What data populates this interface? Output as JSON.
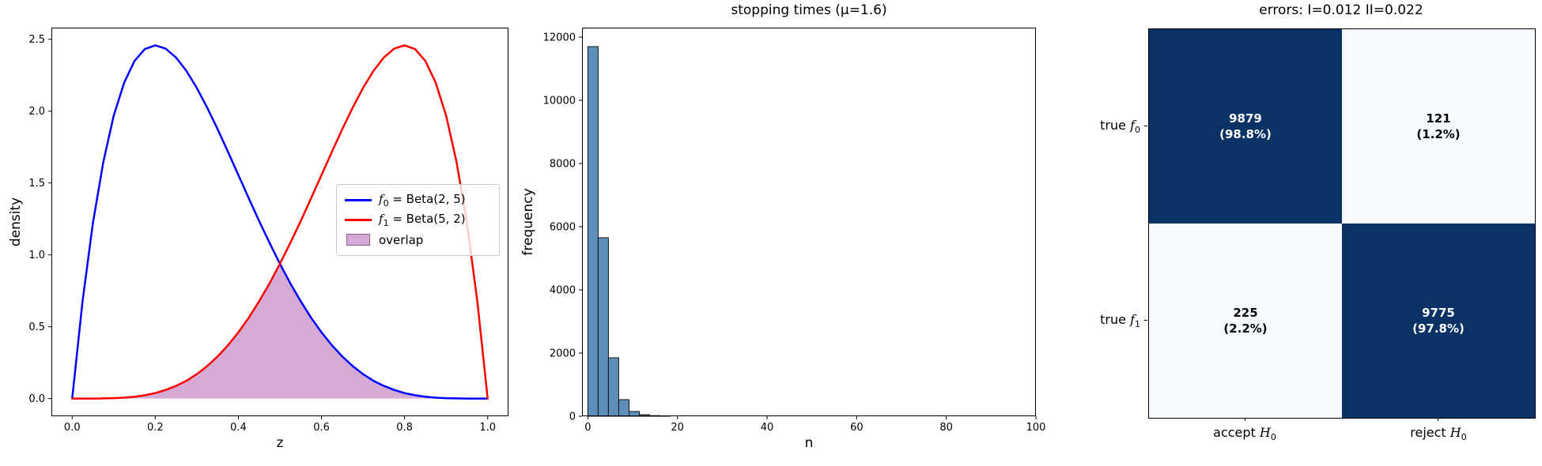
{
  "figure": {
    "background": "#ffffff"
  },
  "chart_data": [
    {
      "type": "line",
      "xlabel": "z",
      "ylabel": "density",
      "xlim": [
        -0.05,
        1.05
      ],
      "ylim": [
        -0.123,
        2.581
      ],
      "xticks": [
        0,
        0.2,
        0.4,
        0.6,
        0.8,
        1.0
      ],
      "xtick_labels": [
        "0.0",
        "0.2",
        "0.4",
        "0.6",
        "0.8",
        "1.0"
      ],
      "yticks": [
        0,
        0.5,
        1.0,
        1.5,
        2.0,
        2.5
      ],
      "ytick_labels": [
        "0.0",
        "0.5",
        "1.0",
        "1.5",
        "2.0",
        "2.5"
      ],
      "x": [
        0,
        0.025,
        0.05,
        0.075,
        0.1,
        0.125,
        0.15,
        0.175,
        0.2,
        0.225,
        0.25,
        0.275,
        0.3,
        0.325,
        0.35,
        0.375,
        0.4,
        0.425,
        0.45,
        0.475,
        0.5,
        0.525,
        0.55,
        0.575,
        0.6,
        0.625,
        0.65,
        0.675,
        0.7,
        0.725,
        0.75,
        0.775,
        0.8,
        0.825,
        0.85,
        0.875,
        0.9,
        0.925,
        0.95,
        0.975,
        1
      ],
      "series": [
        {
          "sym": "f",
          "sub": "0",
          "rest": " = Beta(2, 5)",
          "color": "#0000ff",
          "linewidth": 2.5,
          "y": [
            0,
            0.678,
            1.222,
            1.647,
            1.968,
            2.198,
            2.349,
            2.432,
            2.458,
            2.435,
            2.373,
            2.279,
            2.161,
            2.024,
            1.874,
            1.717,
            1.555,
            1.394,
            1.235,
            1.083,
            0.938,
            0.802,
            0.677,
            0.563,
            0.461,
            0.371,
            0.293,
            0.226,
            0.17,
            0.124,
            0.088,
            0.06,
            0.038,
            0.023,
            0.013,
            0.006,
            0.003,
            0.001,
            0,
            0,
            0
          ]
        },
        {
          "sym": "f",
          "sub": "1",
          "rest": " = Beta(5, 2)",
          "color": "#ff0000",
          "linewidth": 2.5,
          "y": [
            0,
            0,
            0,
            0.001,
            0.003,
            0.006,
            0.013,
            0.023,
            0.038,
            0.06,
            0.088,
            0.124,
            0.17,
            0.226,
            0.293,
            0.371,
            0.461,
            0.563,
            0.677,
            0.802,
            0.938,
            1.083,
            1.235,
            1.394,
            1.555,
            1.717,
            1.874,
            2.024,
            2.161,
            2.279,
            2.373,
            2.435,
            2.458,
            2.432,
            2.349,
            2.198,
            1.968,
            1.647,
            1.222,
            0.678,
            0
          ]
        }
      ],
      "fill": {
        "label": "overlap",
        "fill": "rgba(128,0,128,0.33)",
        "border": "rgba(115,60,125,0.75)",
        "y": [
          0,
          0,
          0,
          0.001,
          0.003,
          0.006,
          0.013,
          0.023,
          0.038,
          0.06,
          0.088,
          0.124,
          0.17,
          0.226,
          0.293,
          0.371,
          0.461,
          0.563,
          0.677,
          0.802,
          0.938,
          0.802,
          0.677,
          0.563,
          0.461,
          0.371,
          0.293,
          0.226,
          0.17,
          0.124,
          0.088,
          0.06,
          0.038,
          0.023,
          0.013,
          0.006,
          0.003,
          0.001,
          0,
          0,
          0
        ]
      },
      "legend": {
        "items": [
          {
            "sym": "f",
            "sub": "0",
            "rest": " = Beta(2, 5)",
            "color": "#0000ff"
          },
          {
            "sym": "f",
            "sub": "1",
            "rest": " = Beta(5, 2)",
            "color": "#ff0000"
          },
          {
            "label": "overlap"
          }
        ]
      }
    },
    {
      "type": "histogram",
      "title": "stopping times (μ=1.6)",
      "xlabel": "n",
      "ylabel": "frequency",
      "xlim": [
        -1.3,
        100
      ],
      "ylim": [
        0,
        12300
      ],
      "xticks": [
        0,
        20,
        40,
        60,
        80,
        100
      ],
      "xtick_labels": [
        "0",
        "20",
        "40",
        "60",
        "80",
        "100"
      ],
      "yticks": [
        0,
        2000,
        4000,
        6000,
        8000,
        10000,
        12000
      ],
      "ytick_labels": [
        "0",
        "2000",
        "4000",
        "6000",
        "8000",
        "10000",
        "12000"
      ],
      "bin_start": 0,
      "bin_width": 2.3,
      "counts": [
        11700,
        5650,
        1850,
        525,
        150,
        50,
        20,
        10
      ],
      "bar_color": "#5e8fba",
      "bar_edge": "#111111"
    },
    {
      "type": "heatmap",
      "title": "errors: I=0.012 II=0.022",
      "rows": [
        {
          "prefix": "true ",
          "sym": "f",
          "sub": "0"
        },
        {
          "prefix": "true ",
          "sym": "f",
          "sub": "1"
        }
      ],
      "cols": [
        {
          "prefix": "accept ",
          "sym": "H",
          "sub": "0"
        },
        {
          "prefix": "reject ",
          "sym": "H",
          "sub": "0"
        }
      ],
      "cells": [
        [
          {
            "count": "9879",
            "pct": "(98.8%)",
            "bg": "#0a3266",
            "fg": "#ffffff"
          },
          {
            "count": "121",
            "pct": "(1.2%)",
            "bg": "#f6f9fd",
            "fg": "#000000"
          }
        ],
        [
          {
            "count": "225",
            "pct": "(2.2%)",
            "bg": "#f6f9fd",
            "fg": "#000000"
          },
          {
            "count": "9775",
            "pct": "(97.8%)",
            "bg": "#0a3266",
            "fg": "#ffffff"
          }
        ]
      ]
    }
  ]
}
